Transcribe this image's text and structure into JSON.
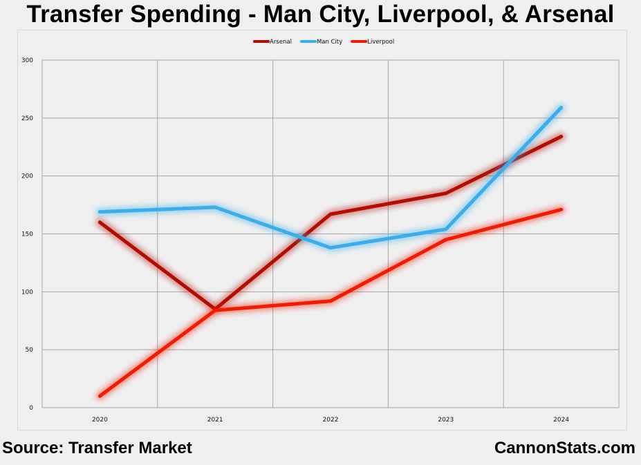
{
  "title": "Transfer Spending - Man City, Liverpool, & Arsenal",
  "footer": {
    "source": "Source: Transfer Market",
    "site": "CannonStats.com"
  },
  "chart_data": {
    "type": "line",
    "categories": [
      "2020",
      "2021",
      "2022",
      "2023",
      "2024"
    ],
    "ylim": [
      0,
      300
    ],
    "yticks": [
      0,
      50,
      100,
      150,
      200,
      250,
      300
    ],
    "grid": true,
    "legend_position": "top",
    "series": [
      {
        "name": "Arsenal",
        "color": "#b20d00",
        "values": [
          160,
          85,
          167,
          185,
          234
        ]
      },
      {
        "name": "Man City",
        "color": "#3aaeea",
        "values": [
          169,
          173,
          138,
          154,
          259
        ]
      },
      {
        "name": "Liverpool",
        "color": "#f21a00",
        "values": [
          10,
          84,
          92,
          145,
          171
        ]
      }
    ]
  }
}
